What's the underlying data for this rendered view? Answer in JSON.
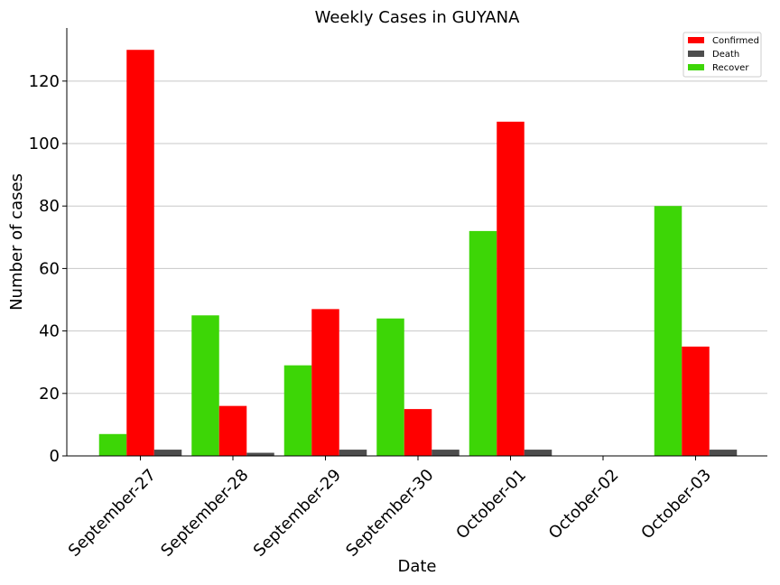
{
  "chart_data": {
    "type": "bar",
    "title": "Weekly Cases in GUYANA",
    "xlabel": "Date",
    "ylabel": "Number of cases",
    "ylim": [
      0,
      137
    ],
    "yticks": [
      0,
      20,
      40,
      60,
      80,
      100,
      120
    ],
    "grid": "horizontal",
    "legend_position": "top-right",
    "categories": [
      "September-27",
      "September-28",
      "September-29",
      "September-30",
      "October-01",
      "October-02",
      "October-03"
    ],
    "series": [
      {
        "name": "Recover",
        "color": "#3dd606",
        "values": [
          7,
          45,
          29,
          44,
          72,
          0,
          80
        ]
      },
      {
        "name": "Confirmed",
        "color": "#ff0000",
        "values": [
          130,
          16,
          47,
          15,
          107,
          0,
          35
        ]
      },
      {
        "name": "Death",
        "color": "#4d4d4d",
        "values": [
          2,
          1,
          2,
          2,
          2,
          0,
          2
        ]
      }
    ],
    "legend_order": [
      "Confirmed",
      "Death",
      "Recover"
    ]
  }
}
